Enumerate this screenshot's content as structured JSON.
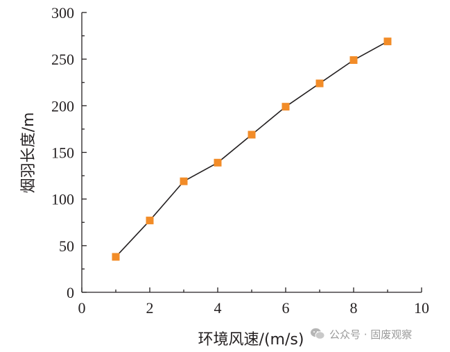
{
  "chart_data": {
    "type": "line",
    "title": "",
    "xlabel": "环境风速/(m/s)",
    "ylabel": "烟羽长度/m",
    "xlim": [
      0,
      10
    ],
    "ylim": [
      0,
      300
    ],
    "xticks": [
      0,
      2,
      4,
      6,
      8,
      10
    ],
    "yticks": [
      0,
      50,
      100,
      150,
      200,
      250,
      300
    ],
    "grid": false,
    "series": [
      {
        "x": [
          1,
          2,
          3,
          4,
          5,
          6,
          7,
          8,
          9
        ],
        "y": [
          38,
          77,
          119,
          139,
          169,
          199,
          224,
          249,
          269
        ],
        "marker": "square",
        "color": "#f28c28",
        "line_color": "#231f20"
      }
    ]
  },
  "watermark": {
    "text": "公众号 · 固废观察",
    "icon": "wechat-icon"
  }
}
